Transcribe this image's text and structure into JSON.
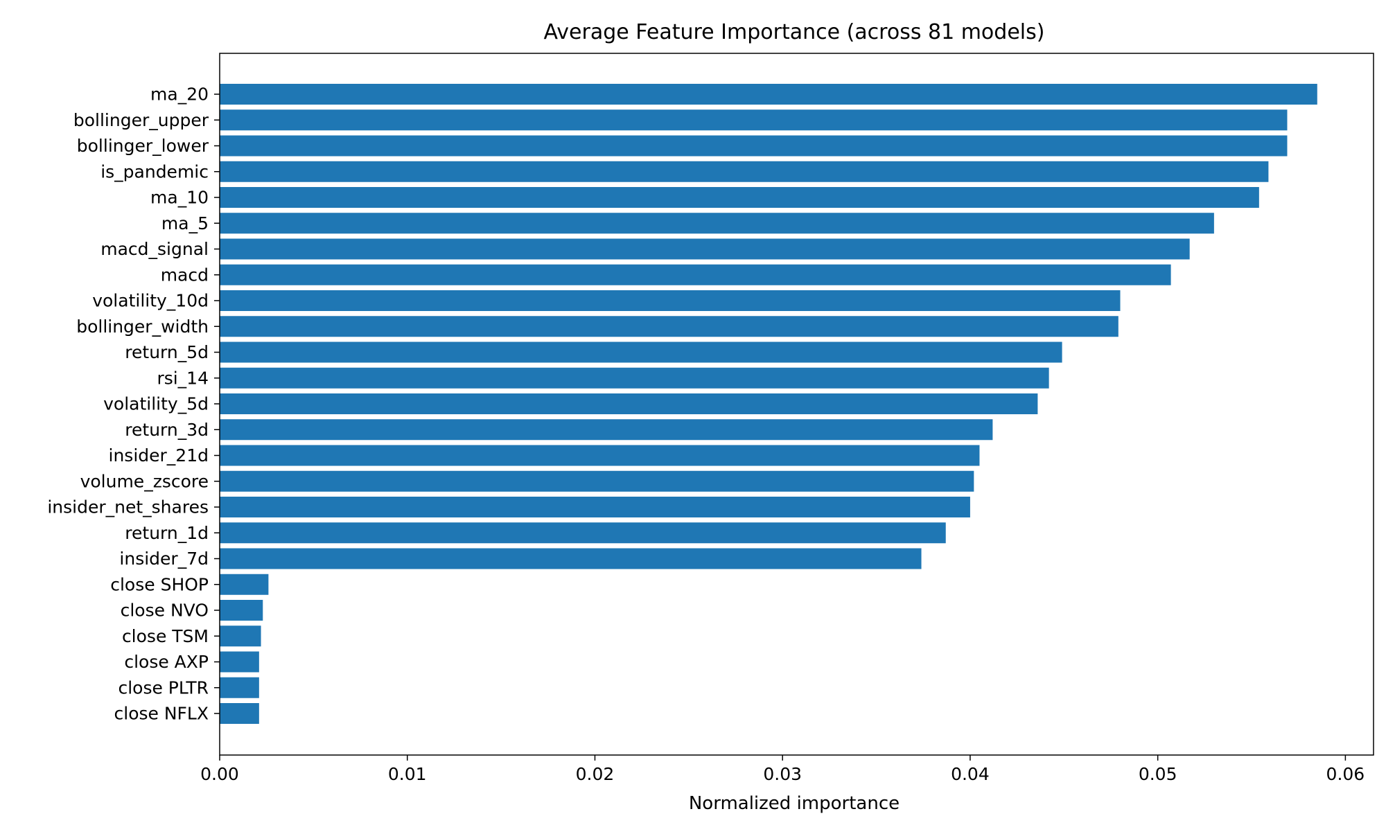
{
  "chart_data": {
    "type": "bar",
    "orientation": "horizontal",
    "title": "Average Feature Importance (across 81 models)",
    "xlabel": "Normalized importance",
    "ylabel": "",
    "xlim": [
      0,
      0.0615
    ],
    "x_ticks": [
      0.0,
      0.01,
      0.02,
      0.03,
      0.04,
      0.05,
      0.06
    ],
    "x_tick_labels": [
      "0.00",
      "0.01",
      "0.02",
      "0.03",
      "0.04",
      "0.05",
      "0.06"
    ],
    "grid": false,
    "legend": "none",
    "bar_color": "#1f77b4",
    "categories": [
      "ma_20",
      "bollinger_upper",
      "bollinger_lower",
      "is_pandemic",
      "ma_10",
      "ma_5",
      "macd_signal",
      "macd",
      "volatility_10d",
      "bollinger_width",
      "return_5d",
      "rsi_14",
      "volatility_5d",
      "return_3d",
      "insider_21d",
      "volume_zscore",
      "insider_net_shares",
      "return_1d",
      "insider_7d",
      "close SHOP",
      "close NVO",
      "close TSM",
      "close AXP",
      "close PLTR",
      "close NFLX"
    ],
    "values": [
      0.0585,
      0.0569,
      0.0569,
      0.0559,
      0.0554,
      0.053,
      0.0517,
      0.0507,
      0.048,
      0.0479,
      0.0449,
      0.0442,
      0.0436,
      0.0412,
      0.0405,
      0.0402,
      0.04,
      0.0387,
      0.0374,
      0.0026,
      0.0023,
      0.0022,
      0.0021,
      0.0021,
      0.0021
    ]
  }
}
